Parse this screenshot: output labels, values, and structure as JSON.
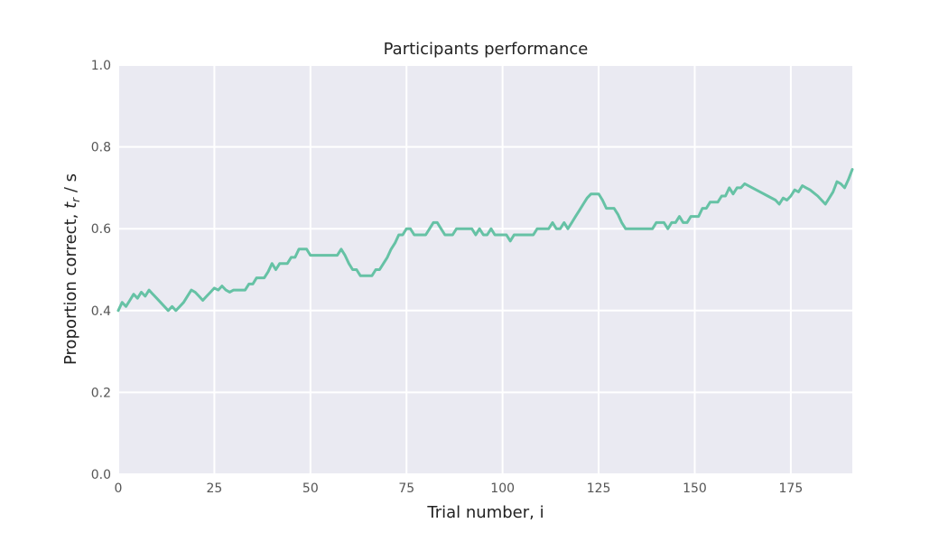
{
  "chart_data": {
    "type": "line",
    "title": "Participants performance",
    "xlabel": "Trial number, i",
    "ylabel": {
      "text": "Proportion correct, ",
      "symbol": "t",
      "subscript": "r",
      "suffix": " / s"
    },
    "xlim": [
      0,
      191
    ],
    "ylim": [
      0,
      1
    ],
    "x_ticks": [
      {
        "value": 0,
        "label": "0"
      },
      {
        "value": 25,
        "label": "25"
      },
      {
        "value": 50,
        "label": "50"
      },
      {
        "value": 75,
        "label": "75"
      },
      {
        "value": 100,
        "label": "100"
      },
      {
        "value": 125,
        "label": "125"
      },
      {
        "value": 150,
        "label": "150"
      },
      {
        "value": 175,
        "label": "175"
      }
    ],
    "y_ticks": [
      {
        "value": 0,
        "label": "0.0"
      },
      {
        "value": 0.2,
        "label": "0.2"
      },
      {
        "value": 0.4,
        "label": "0.4"
      },
      {
        "value": 0.6,
        "label": "0.6"
      },
      {
        "value": 0.8,
        "label": "0.8"
      },
      {
        "value": 1.0,
        "label": "1.0"
      }
    ],
    "grid": true,
    "colors": {
      "background": "#eaeaf2",
      "grid": "#ffffff",
      "line": "#66c2a5"
    },
    "series": [
      {
        "points": [
          [
            0,
            0.4
          ],
          [
            1,
            0.42
          ],
          [
            2,
            0.41
          ],
          [
            3,
            0.425
          ],
          [
            4,
            0.44
          ],
          [
            5,
            0.43
          ],
          [
            6,
            0.445
          ],
          [
            7,
            0.435
          ],
          [
            8,
            0.45
          ],
          [
            9,
            0.44
          ],
          [
            10,
            0.43
          ],
          [
            11,
            0.42
          ],
          [
            12,
            0.41
          ],
          [
            13,
            0.4
          ],
          [
            14,
            0.41
          ],
          [
            15,
            0.4
          ],
          [
            16,
            0.41
          ],
          [
            17,
            0.42
          ],
          [
            18,
            0.435
          ],
          [
            19,
            0.45
          ],
          [
            20,
            0.445
          ],
          [
            21,
            0.435
          ],
          [
            22,
            0.425
          ],
          [
            23,
            0.435
          ],
          [
            24,
            0.445
          ],
          [
            25,
            0.455
          ],
          [
            26,
            0.45
          ],
          [
            27,
            0.46
          ],
          [
            28,
            0.45
          ],
          [
            29,
            0.445
          ],
          [
            30,
            0.45
          ],
          [
            31,
            0.45
          ],
          [
            32,
            0.45
          ],
          [
            33,
            0.45
          ],
          [
            34,
            0.465
          ],
          [
            35,
            0.465
          ],
          [
            36,
            0.48
          ],
          [
            37,
            0.48
          ],
          [
            38,
            0.48
          ],
          [
            39,
            0.495
          ],
          [
            40,
            0.515
          ],
          [
            41,
            0.5
          ],
          [
            42,
            0.515
          ],
          [
            43,
            0.515
          ],
          [
            44,
            0.515
          ],
          [
            45,
            0.53
          ],
          [
            46,
            0.53
          ],
          [
            47,
            0.55
          ],
          [
            48,
            0.55
          ],
          [
            49,
            0.55
          ],
          [
            50,
            0.535
          ],
          [
            52,
            0.535
          ],
          [
            55,
            0.535
          ],
          [
            57,
            0.535
          ],
          [
            58,
            0.55
          ],
          [
            59,
            0.535
          ],
          [
            60,
            0.515
          ],
          [
            61,
            0.5
          ],
          [
            62,
            0.5
          ],
          [
            63,
            0.485
          ],
          [
            64,
            0.485
          ],
          [
            65,
            0.485
          ],
          [
            66,
            0.485
          ],
          [
            67,
            0.5
          ],
          [
            68,
            0.5
          ],
          [
            69,
            0.515
          ],
          [
            70,
            0.53
          ],
          [
            71,
            0.55
          ],
          [
            72,
            0.565
          ],
          [
            73,
            0.585
          ],
          [
            74,
            0.585
          ],
          [
            75,
            0.6
          ],
          [
            76,
            0.6
          ],
          [
            77,
            0.585
          ],
          [
            78,
            0.585
          ],
          [
            79,
            0.585
          ],
          [
            80,
            0.585
          ],
          [
            81,
            0.6
          ],
          [
            82,
            0.615
          ],
          [
            83,
            0.615
          ],
          [
            84,
            0.6
          ],
          [
            85,
            0.585
          ],
          [
            86,
            0.585
          ],
          [
            87,
            0.585
          ],
          [
            88,
            0.6
          ],
          [
            89,
            0.6
          ],
          [
            90,
            0.6
          ],
          [
            91,
            0.6
          ],
          [
            92,
            0.6
          ],
          [
            93,
            0.585
          ],
          [
            94,
            0.6
          ],
          [
            95,
            0.585
          ],
          [
            96,
            0.585
          ],
          [
            97,
            0.6
          ],
          [
            98,
            0.585
          ],
          [
            99,
            0.585
          ],
          [
            100,
            0.585
          ],
          [
            101,
            0.585
          ],
          [
            102,
            0.57
          ],
          [
            103,
            0.585
          ],
          [
            104,
            0.585
          ],
          [
            105,
            0.585
          ],
          [
            106,
            0.585
          ],
          [
            107,
            0.585
          ],
          [
            108,
            0.585
          ],
          [
            109,
            0.6
          ],
          [
            110,
            0.6
          ],
          [
            111,
            0.6
          ],
          [
            112,
            0.6
          ],
          [
            113,
            0.615
          ],
          [
            114,
            0.6
          ],
          [
            115,
            0.6
          ],
          [
            116,
            0.615
          ],
          [
            117,
            0.6
          ],
          [
            118,
            0.615
          ],
          [
            119,
            0.63
          ],
          [
            120,
            0.645
          ],
          [
            121,
            0.66
          ],
          [
            122,
            0.675
          ],
          [
            123,
            0.685
          ],
          [
            124,
            0.685
          ],
          [
            125,
            0.685
          ],
          [
            126,
            0.67
          ],
          [
            127,
            0.65
          ],
          [
            128,
            0.65
          ],
          [
            129,
            0.65
          ],
          [
            130,
            0.635
          ],
          [
            131,
            0.615
          ],
          [
            132,
            0.6
          ],
          [
            134,
            0.6
          ],
          [
            136,
            0.6
          ],
          [
            138,
            0.6
          ],
          [
            139,
            0.6
          ],
          [
            140,
            0.615
          ],
          [
            141,
            0.615
          ],
          [
            142,
            0.615
          ],
          [
            143,
            0.6
          ],
          [
            144,
            0.615
          ],
          [
            145,
            0.615
          ],
          [
            146,
            0.63
          ],
          [
            147,
            0.615
          ],
          [
            148,
            0.615
          ],
          [
            149,
            0.63
          ],
          [
            150,
            0.63
          ],
          [
            151,
            0.63
          ],
          [
            152,
            0.65
          ],
          [
            153,
            0.65
          ],
          [
            154,
            0.665
          ],
          [
            155,
            0.665
          ],
          [
            156,
            0.665
          ],
          [
            157,
            0.68
          ],
          [
            158,
            0.68
          ],
          [
            159,
            0.7
          ],
          [
            160,
            0.685
          ],
          [
            161,
            0.7
          ],
          [
            162,
            0.7
          ],
          [
            163,
            0.71
          ],
          [
            165,
            0.7
          ],
          [
            167,
            0.69
          ],
          [
            169,
            0.68
          ],
          [
            171,
            0.67
          ],
          [
            172,
            0.66
          ],
          [
            173,
            0.675
          ],
          [
            174,
            0.67
          ],
          [
            175,
            0.68
          ],
          [
            176,
            0.695
          ],
          [
            177,
            0.69
          ],
          [
            178,
            0.705
          ],
          [
            179,
            0.7
          ],
          [
            180,
            0.695
          ],
          [
            182,
            0.68
          ],
          [
            184,
            0.66
          ],
          [
            185,
            0.675
          ],
          [
            186,
            0.69
          ],
          [
            187,
            0.715
          ],
          [
            188,
            0.71
          ],
          [
            189,
            0.7
          ],
          [
            190,
            0.72
          ],
          [
            191,
            0.745
          ]
        ]
      }
    ]
  }
}
